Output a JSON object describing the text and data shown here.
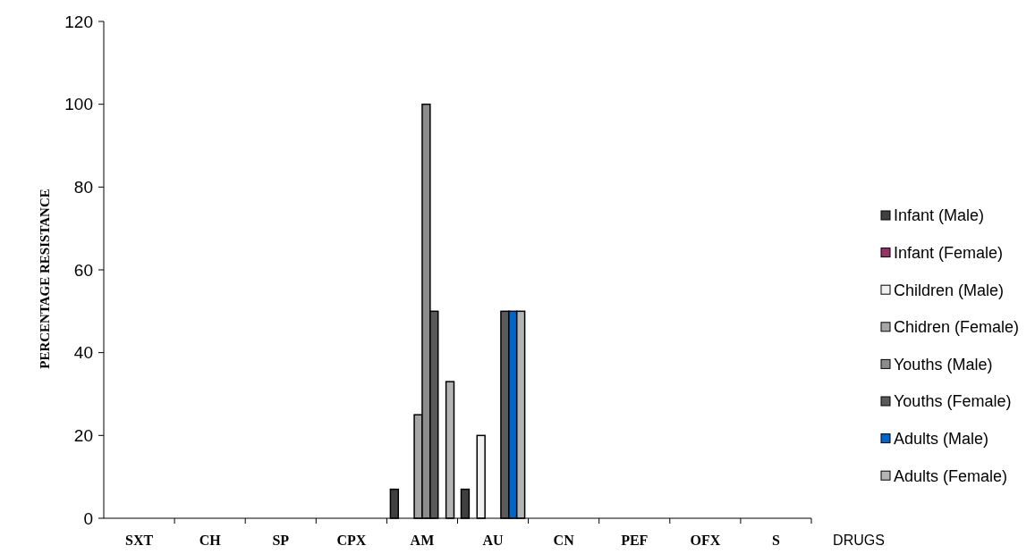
{
  "chart_data": {
    "type": "bar",
    "xlabel": "DRUGS",
    "ylabel": "PERCENTAGE RESISTANCE",
    "categories": [
      "SXT",
      "CH",
      "SP",
      "CPX",
      "AM",
      "AU",
      "CN",
      "PEF",
      "OFX",
      "S"
    ],
    "series": [
      {
        "name": "Infant (Male)",
        "color": "#404040",
        "values": [
          0,
          0,
          0,
          0,
          7,
          7,
          0,
          0,
          0,
          0
        ]
      },
      {
        "name": "Infant (Female)",
        "color": "#993366",
        "values": [
          0,
          0,
          0,
          0,
          0,
          0,
          0,
          0,
          0,
          0
        ]
      },
      {
        "name": "Children (Male)",
        "color": "#f0f0f0",
        "values": [
          0,
          0,
          0,
          0,
          0,
          20,
          0,
          0,
          0,
          0
        ]
      },
      {
        "name": "Chidren (Female)",
        "color": "#a6a6a6",
        "values": [
          0,
          0,
          0,
          0,
          25,
          0,
          0,
          0,
          0,
          0
        ]
      },
      {
        "name": "Youths (Male)",
        "color": "#8c8c8c",
        "values": [
          0,
          0,
          0,
          0,
          100,
          0,
          0,
          0,
          0,
          0
        ]
      },
      {
        "name": "Youths (Female)",
        "color": "#5a5a5a",
        "values": [
          0,
          0,
          0,
          0,
          50,
          50,
          0,
          0,
          0,
          0
        ]
      },
      {
        "name": "Adults (Male)",
        "color": "#0066cc",
        "values": [
          0,
          0,
          0,
          0,
          0,
          50,
          0,
          0,
          0,
          0
        ]
      },
      {
        "name": "Adults (Female)",
        "color": "#b4b4b4",
        "values": [
          0,
          0,
          0,
          0,
          33,
          50,
          0,
          0,
          0,
          0
        ]
      }
    ],
    "ylim": [
      0,
      120
    ],
    "yticks": [
      0,
      20,
      40,
      60,
      80,
      100,
      120
    ],
    "grid": false,
    "legend": "right"
  }
}
